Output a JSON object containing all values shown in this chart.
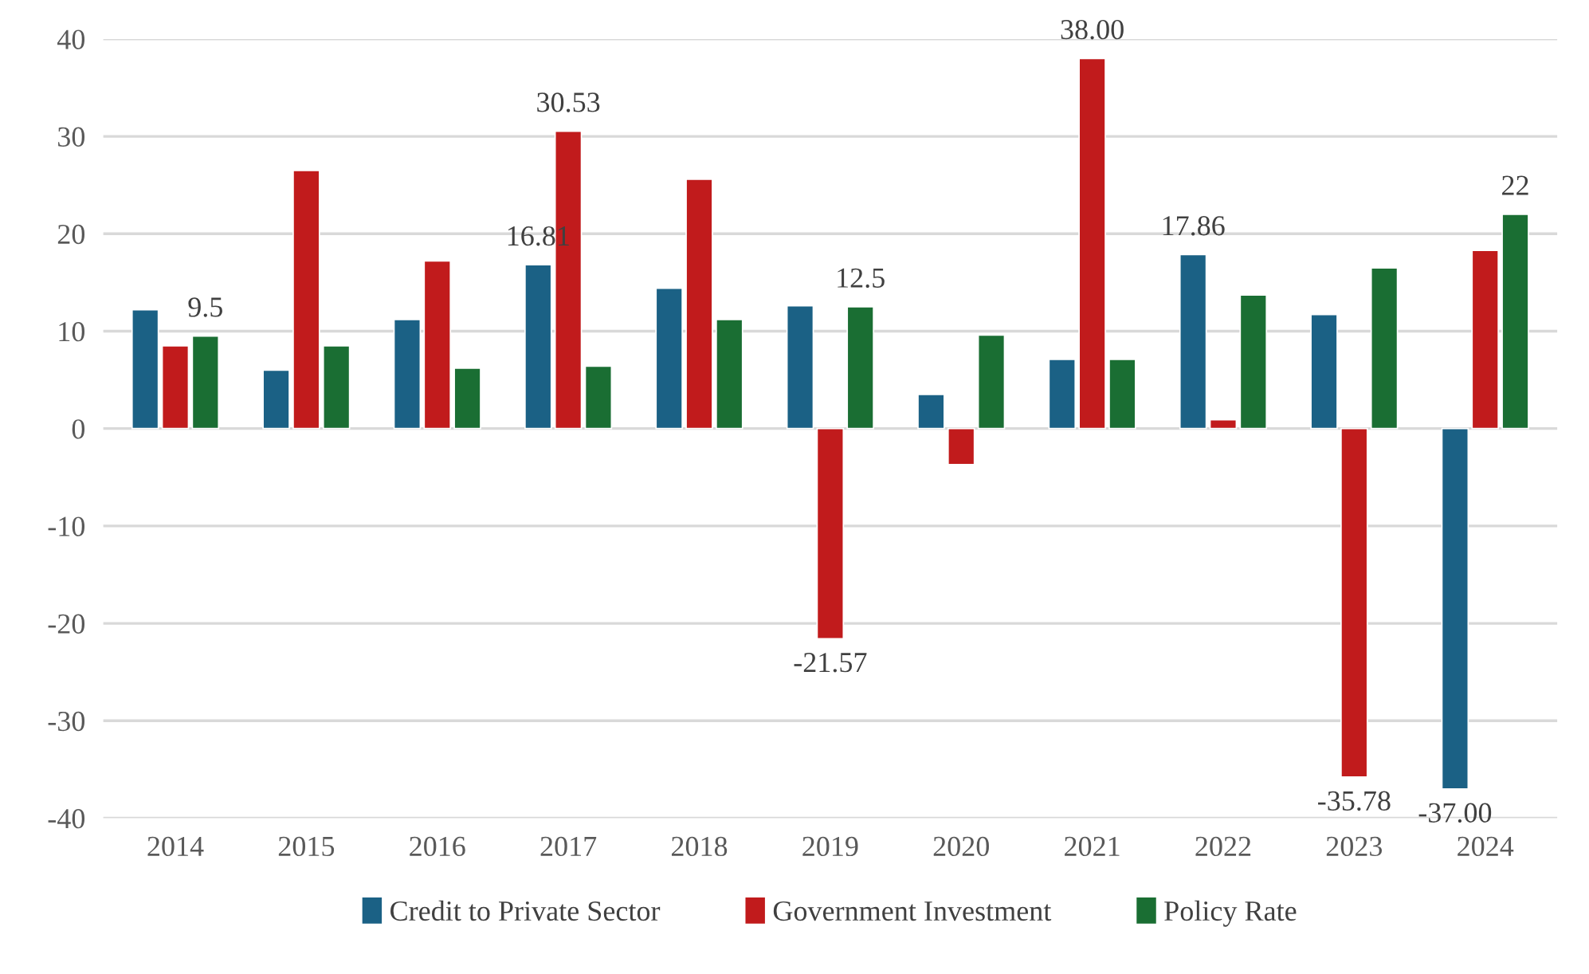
{
  "chart_data": {
    "type": "bar",
    "categories": [
      "2014",
      "2015",
      "2016",
      "2017",
      "2018",
      "2019",
      "2020",
      "2021",
      "2022",
      "2023",
      "2024"
    ],
    "series": [
      {
        "name": "Credit to Private Sector",
        "color": "#1b6185",
        "values": [
          12.2,
          6.0,
          11.2,
          16.81,
          14.4,
          12.6,
          3.5,
          7.1,
          17.86,
          11.7,
          -37.0
        ],
        "value_labels": [
          null,
          null,
          null,
          "16.81",
          null,
          null,
          null,
          null,
          "17.86",
          null,
          "-37.00"
        ]
      },
      {
        "name": "Government Investment",
        "color": "#c11b1c",
        "values": [
          8.5,
          26.5,
          17.2,
          30.53,
          25.6,
          -21.57,
          -3.7,
          38.0,
          0.9,
          -35.78,
          18.3
        ],
        "value_labels": [
          null,
          null,
          null,
          "30.53",
          null,
          "-21.57",
          null,
          "38.00",
          null,
          "-35.78",
          null
        ]
      },
      {
        "name": "Policy Rate",
        "color": "#1a6e33",
        "values": [
          9.5,
          8.5,
          6.2,
          6.4,
          11.2,
          12.5,
          9.6,
          7.1,
          13.7,
          16.5,
          22
        ],
        "value_labels": [
          "9.5",
          null,
          null,
          null,
          null,
          "12.5",
          null,
          null,
          null,
          null,
          "22"
        ]
      }
    ],
    "ylim": [
      -40,
      40
    ],
    "yticks": [
      -40,
      -30,
      -20,
      -10,
      0,
      10,
      20,
      30,
      40
    ],
    "grid": "y",
    "legend": "bottom"
  }
}
